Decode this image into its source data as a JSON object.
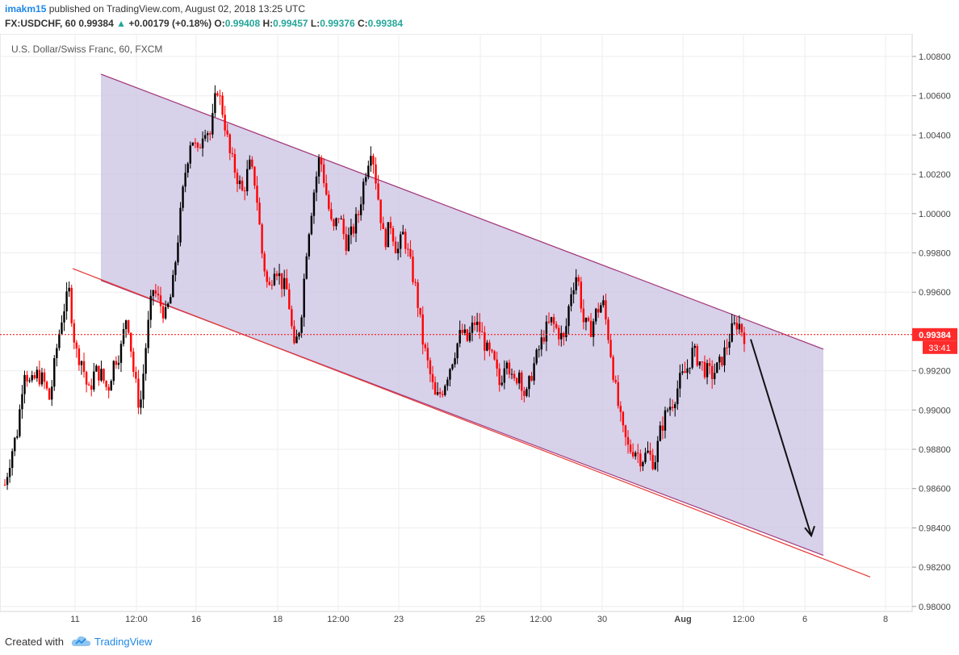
{
  "header": {
    "author": "imakm15",
    "published": "published on TradingView.com, August 02, 2018 13:25 UTC",
    "symbol": "FX:USDCHF, 60",
    "price": "0.99384",
    "change": "+0.00179 (+0.18%)",
    "o_label": "O:",
    "o": "0.99408",
    "h_label": "H:",
    "h": "0.99457",
    "l_label": "L:",
    "l": "0.99376",
    "c_label": "C:",
    "c": "0.99384"
  },
  "chart_data": {
    "type": "candlestick",
    "title": "U.S. Dollar/Swiss Franc, 60, FXCM",
    "ylim": [
      0.9795,
      1.0092
    ],
    "y_ticks": [
      "1.00800",
      "1.00600",
      "1.00400",
      "1.00200",
      "1.00000",
      "0.99800",
      "0.99600",
      "0.99400",
      "0.99200",
      "0.99000",
      "0.98800",
      "0.98600",
      "0.98400",
      "0.98200",
      "0.98000"
    ],
    "x_ticks": [
      "11",
      "12:00",
      "16",
      "18",
      "12:00",
      "23",
      "25",
      "12:00",
      "30",
      "Aug",
      "12:00",
      "6",
      "8"
    ],
    "last_price": "0.99384",
    "countdown": "33:41",
    "colors": {
      "up": "#000000",
      "down": "#ff0000",
      "channel_fill": "#c9c1e3",
      "channel_line": "#a4387a",
      "price_line": "#ff0000"
    },
    "price_path": [
      [
        0.9862,
        0.9878
      ],
      [
        0.989,
        0.9922
      ],
      [
        0.9912,
        0.9918
      ],
      [
        0.9915,
        0.9905
      ],
      [
        0.993,
        0.995
      ],
      [
        0.996,
        0.993
      ],
      [
        0.9925,
        0.9908
      ],
      [
        0.992,
        0.9918
      ],
      [
        0.991,
        0.9925
      ],
      [
        0.993,
        0.995
      ],
      [
        0.992,
        0.99
      ],
      [
        0.9935,
        0.9962
      ],
      [
        0.9955,
        0.9948
      ],
      [
        0.996,
        0.999
      ],
      [
        1.002,
        1.004
      ],
      [
        1.003,
        1.0045
      ],
      [
        1.004,
        1.0065
      ],
      [
        1.005,
        1.003
      ],
      [
        1.002,
        1.001
      ],
      [
        1.0025,
        1.0015
      ],
      [
        0.998,
        0.996
      ],
      [
        0.9975,
        0.9965
      ],
      [
        0.996,
        0.993
      ],
      [
        0.9945,
        0.9985
      ],
      [
        1.001,
        1.003
      ],
      [
        1.001,
        0.999
      ],
      [
        1.0,
        0.9985
      ],
      [
        0.999,
        1.0
      ],
      [
        1.002,
        1.0035
      ],
      [
        1.001,
        0.9985
      ],
      [
        0.9995,
        0.998
      ],
      [
        0.999,
        0.9975
      ],
      [
        0.996,
        0.9935
      ],
      [
        0.992,
        0.9905
      ],
      [
        0.991,
        0.992
      ],
      [
        0.993,
        0.994
      ],
      [
        0.9935,
        0.9945
      ],
      [
        0.994,
        0.993
      ],
      [
        0.9925,
        0.9912
      ],
      [
        0.993,
        0.9912
      ],
      [
        0.992,
        0.9905
      ],
      [
        0.992,
        0.993
      ],
      [
        0.994,
        0.9945
      ],
      [
        0.994,
        0.9935
      ],
      [
        0.996,
        0.997
      ],
      [
        0.9945,
        0.994
      ],
      [
        0.995,
        0.9955
      ],
      [
        0.9935,
        0.991
      ],
      [
        0.989,
        0.988
      ],
      [
        0.988,
        0.9875
      ],
      [
        0.9878,
        0.9873
      ],
      [
        0.989,
        0.99
      ],
      [
        0.9905,
        0.9915
      ],
      [
        0.992,
        0.993
      ],
      [
        0.9925,
        0.992
      ],
      [
        0.9918,
        0.9922
      ],
      [
        0.993,
        0.994
      ],
      [
        0.9945,
        0.9938
      ]
    ]
  },
  "footer": {
    "created_with": "Created with",
    "brand": "TradingView"
  }
}
